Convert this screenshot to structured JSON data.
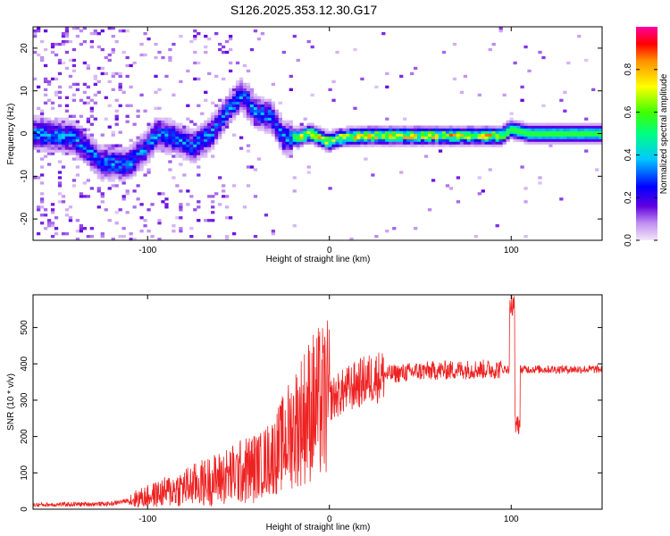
{
  "title": "S126.2025.353.12.30.G17",
  "chart_data": [
    {
      "type": "heatmap",
      "name": "spectrogram",
      "xlabel": "Height of straight line (km)",
      "ylabel": "Frequency (Hz)",
      "xlim": [
        -163,
        150
      ],
      "ylim": [
        -25,
        25
      ],
      "xticks": [
        -100,
        0,
        100
      ],
      "yticks": [
        -20,
        -10,
        0,
        10,
        20
      ],
      "colorbar": {
        "label": "Normalized spectral amplitude",
        "range": [
          0,
          1
        ],
        "ticks": [
          0.0,
          0.2,
          0.4,
          0.6,
          0.8
        ]
      },
      "ridge": [
        {
          "x": -160,
          "f": 0
        },
        {
          "x": -140,
          "f": -1
        },
        {
          "x": -125,
          "f": -7
        },
        {
          "x": -110,
          "f": -7
        },
        {
          "x": -100,
          "f": -3
        },
        {
          "x": -95,
          "f": 0
        },
        {
          "x": -85,
          "f": -1
        },
        {
          "x": -75,
          "f": -3
        },
        {
          "x": -65,
          "f": 0
        },
        {
          "x": -55,
          "f": 6
        },
        {
          "x": -48,
          "f": 9
        },
        {
          "x": -40,
          "f": 5
        },
        {
          "x": -32,
          "f": 4
        },
        {
          "x": -25,
          "f": -1
        },
        {
          "x": -18,
          "f": -1
        },
        {
          "x": -10,
          "f": 0
        },
        {
          "x": 0,
          "f": -2
        },
        {
          "x": 5,
          "f": -1
        },
        {
          "x": 20,
          "f": -0.5
        },
        {
          "x": 60,
          "f": -0.5
        },
        {
          "x": 95,
          "f": -0.5
        },
        {
          "x": 100,
          "f": 1
        },
        {
          "x": 110,
          "f": 0
        },
        {
          "x": 150,
          "f": 0
        }
      ]
    },
    {
      "type": "line",
      "name": "snr",
      "xlabel": "Height of straight line (km)",
      "ylabel": "SNR (10 * v/v)",
      "xlim": [
        -163,
        150
      ],
      "ylim": [
        0,
        590
      ],
      "xticks": [
        -100,
        0,
        100
      ],
      "yticks": [
        0,
        100,
        200,
        300,
        400,
        500
      ],
      "color": "#ee2222",
      "trend": [
        {
          "x": -163,
          "y": 12
        },
        {
          "x": -120,
          "y": 15
        },
        {
          "x": -100,
          "y": 35
        },
        {
          "x": -80,
          "y": 60
        },
        {
          "x": -60,
          "y": 85
        },
        {
          "x": -40,
          "y": 115
        },
        {
          "x": -30,
          "y": 150
        },
        {
          "x": -20,
          "y": 220
        },
        {
          "x": -10,
          "y": 280
        },
        {
          "x": 0,
          "y": 300
        },
        {
          "x": 10,
          "y": 330
        },
        {
          "x": 20,
          "y": 355
        },
        {
          "x": 30,
          "y": 370
        },
        {
          "x": 50,
          "y": 380
        },
        {
          "x": 80,
          "y": 385
        },
        {
          "x": 100,
          "y": 385
        },
        {
          "x": 150,
          "y": 385
        }
      ],
      "spike": {
        "x": 102,
        "max": 590,
        "min": 205
      }
    }
  ]
}
